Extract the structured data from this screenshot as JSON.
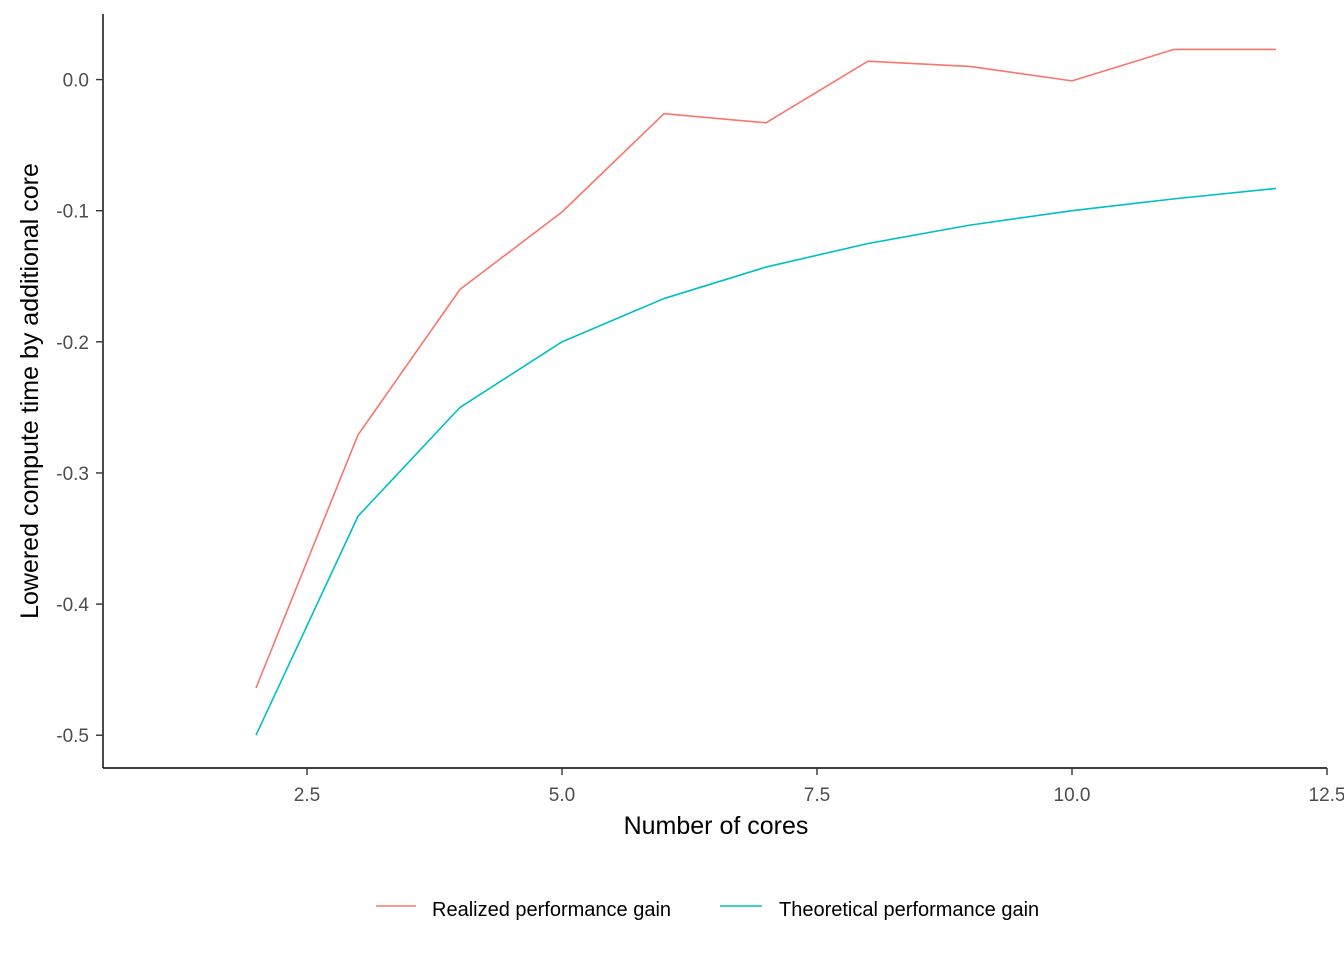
{
  "chart_data": {
    "type": "line",
    "xlabel": "Number of cores",
    "ylabel": "Lowered compute time by additional core",
    "xlim": [
      0.5,
      12.5
    ],
    "ylim": [
      -0.525,
      0.05
    ],
    "x_ticks": [
      2.5,
      5.0,
      7.5,
      10.0,
      12.5
    ],
    "x_tick_labels": [
      "2.5",
      "5.0",
      "7.5",
      "10.0",
      "12.5"
    ],
    "y_ticks": [
      -0.5,
      -0.4,
      -0.3,
      -0.2,
      -0.1,
      0.0
    ],
    "y_tick_labels": [
      "-0.5",
      "-0.4",
      "-0.3",
      "-0.2",
      "-0.1",
      "0.0"
    ],
    "grid": false,
    "legend_position": "bottom",
    "series": [
      {
        "name": "Realized performance gain",
        "color": "#F8766D",
        "x": [
          2,
          3,
          4,
          5,
          6,
          7,
          8,
          9,
          10,
          11,
          12
        ],
        "y": [
          -0.464,
          -0.271,
          -0.16,
          -0.101,
          -0.026,
          -0.033,
          0.014,
          0.01,
          -0.001,
          0.023,
          0.023
        ]
      },
      {
        "name": "Theoretical performance gain",
        "color": "#00BFC4",
        "x": [
          2,
          3,
          4,
          5,
          6,
          7,
          8,
          9,
          10,
          11,
          12
        ],
        "y": [
          -0.5,
          -0.333,
          -0.25,
          -0.2,
          -0.167,
          -0.143,
          -0.125,
          -0.111,
          -0.1,
          -0.091,
          -0.083
        ]
      }
    ]
  }
}
